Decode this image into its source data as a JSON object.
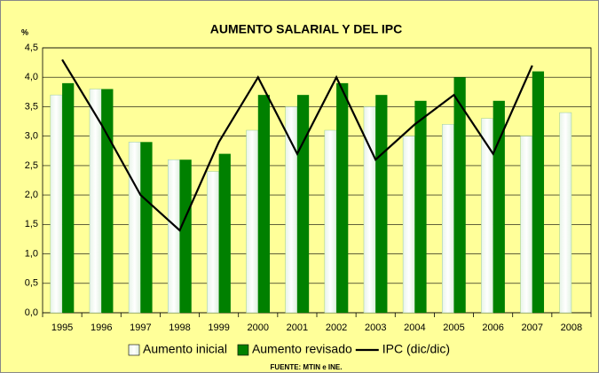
{
  "chart_data": {
    "type": "bar_line",
    "title": "AUMENTO SALARIAL Y DEL IPC",
    "y_label": "%",
    "source": "FUENTE: MTIN e INE.",
    "categories": [
      "1995",
      "1996",
      "1997",
      "1998",
      "1999",
      "2000",
      "2001",
      "2002",
      "2003",
      "2004",
      "2005",
      "2006",
      "2007",
      "2008"
    ],
    "series": [
      {
        "name": "Aumento inicial",
        "type": "bar",
        "color": "#ffffff",
        "values": [
          3.7,
          3.8,
          2.9,
          2.6,
          2.4,
          3.1,
          3.5,
          3.1,
          3.5,
          3.0,
          3.2,
          3.3,
          3.0,
          3.4
        ]
      },
      {
        "name": "Aumento revisado",
        "type": "bar",
        "color": "#008000",
        "values": [
          3.9,
          3.8,
          2.9,
          2.6,
          2.7,
          3.7,
          3.7,
          3.9,
          3.7,
          3.6,
          4.0,
          3.6,
          4.1,
          null
        ]
      },
      {
        "name": "IPC (dic/dic)",
        "type": "line",
        "color": "#000000",
        "values": [
          4.3,
          3.2,
          2.0,
          1.4,
          2.9,
          4.0,
          2.7,
          4.0,
          2.6,
          3.2,
          3.7,
          2.7,
          4.2,
          null
        ]
      }
    ],
    "ylim": [
      0,
      4.5
    ],
    "yticks": [
      {
        "value": 0,
        "label": "0,0"
      },
      {
        "value": 0.5,
        "label": "0,5"
      },
      {
        "value": 1,
        "label": "1,0"
      },
      {
        "value": 1.5,
        "label": "1,5"
      },
      {
        "value": 2,
        "label": "2,0"
      },
      {
        "value": 2.5,
        "label": "2,5"
      },
      {
        "value": 3,
        "label": "3,0"
      },
      {
        "value": 3.5,
        "label": "3,5"
      },
      {
        "value": 4,
        "label": "4,0"
      },
      {
        "value": 4.5,
        "label": "4,5"
      }
    ],
    "grid": true,
    "legend": "bottom",
    "background": "#ffff99"
  }
}
